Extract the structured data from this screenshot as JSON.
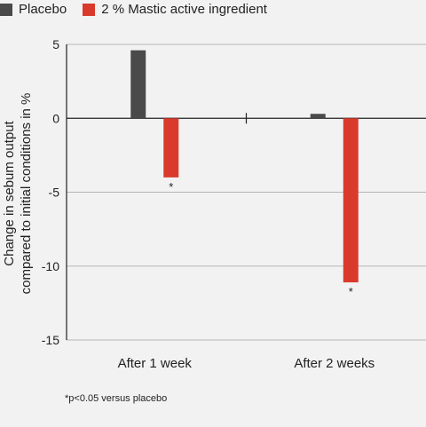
{
  "legend": [
    {
      "label": "Placebo",
      "color": "#4a4a4a"
    },
    {
      "label": "2 % Mastic active ingredient",
      "color": "#d93a2b"
    }
  ],
  "footnote": "*p<0.05 versus placebo",
  "chart_data": {
    "type": "bar",
    "categories": [
      "After 1 week",
      "After 2 weeks"
    ],
    "series": [
      {
        "name": "Placebo",
        "color": "#4a4a4a",
        "values": [
          4.6,
          0.3
        ]
      },
      {
        "name": "2 % Mastic active ingredient",
        "color": "#d93a2b",
        "values": [
          -4.0,
          -11.1
        ],
        "annotations": [
          "*",
          "*"
        ]
      }
    ],
    "ylabel_lines": [
      "Change in sebum output",
      "compared to initial conditions in %"
    ],
    "yticks": [
      5,
      0,
      -5,
      -10,
      -15
    ],
    "ytick_labels": [
      "5",
      "0",
      "-5",
      "-10",
      "-15"
    ],
    "ylim": [
      -15,
      5
    ],
    "grid": true
  }
}
